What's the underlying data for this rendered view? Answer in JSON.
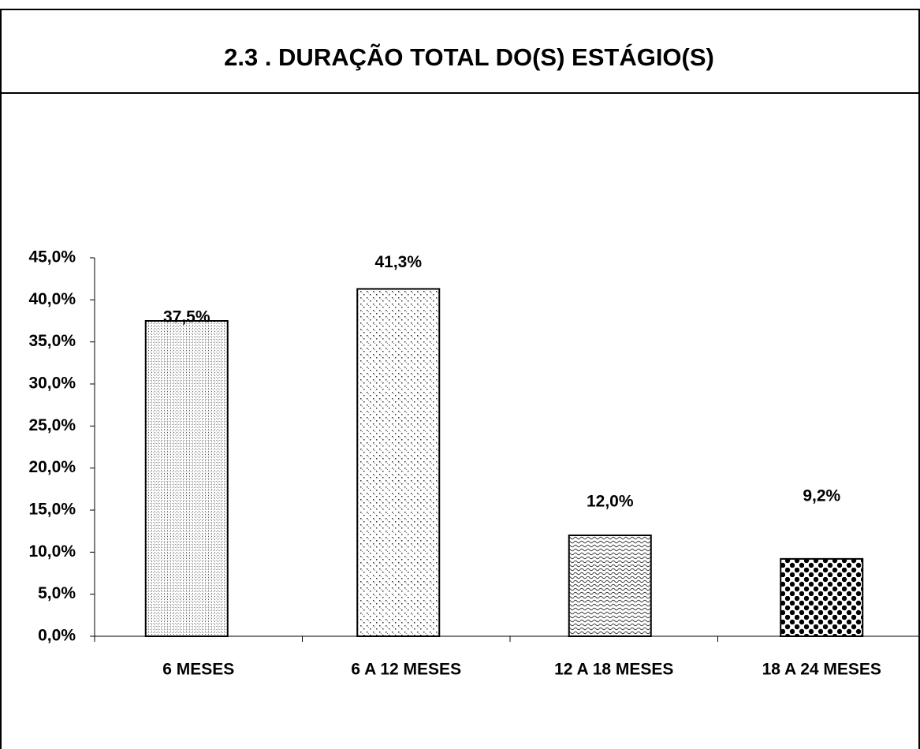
{
  "chart_data": {
    "type": "bar",
    "title": "2.3 . DURAÇÃO TOTAL DO(S) ESTÁGIO(S)",
    "categories": [
      "6 MESES",
      "6  A 12 MESES",
      "12  A 18 MESES",
      "18 A  24 MESES"
    ],
    "values": [
      37.5,
      41.3,
      12.0,
      9.2
    ],
    "value_labels": [
      "37,5%",
      "41,3%",
      "12,0%",
      "9,2%"
    ],
    "ylim": [
      0,
      45
    ],
    "yticks": [
      {
        "value": 0,
        "label": "0,0%"
      },
      {
        "value": 5,
        "label": "5,0%"
      },
      {
        "value": 10,
        "label": "10,0%"
      },
      {
        "value": 15,
        "label": "15,0%"
      },
      {
        "value": 20,
        "label": "20,0%"
      },
      {
        "value": 25,
        "label": "25,0%"
      },
      {
        "value": 30,
        "label": "30,0%"
      },
      {
        "value": 35,
        "label": "35,0%"
      },
      {
        "value": 40,
        "label": "40,0%"
      },
      {
        "value": 45,
        "label": "45,0%"
      }
    ],
    "grid": false
  }
}
